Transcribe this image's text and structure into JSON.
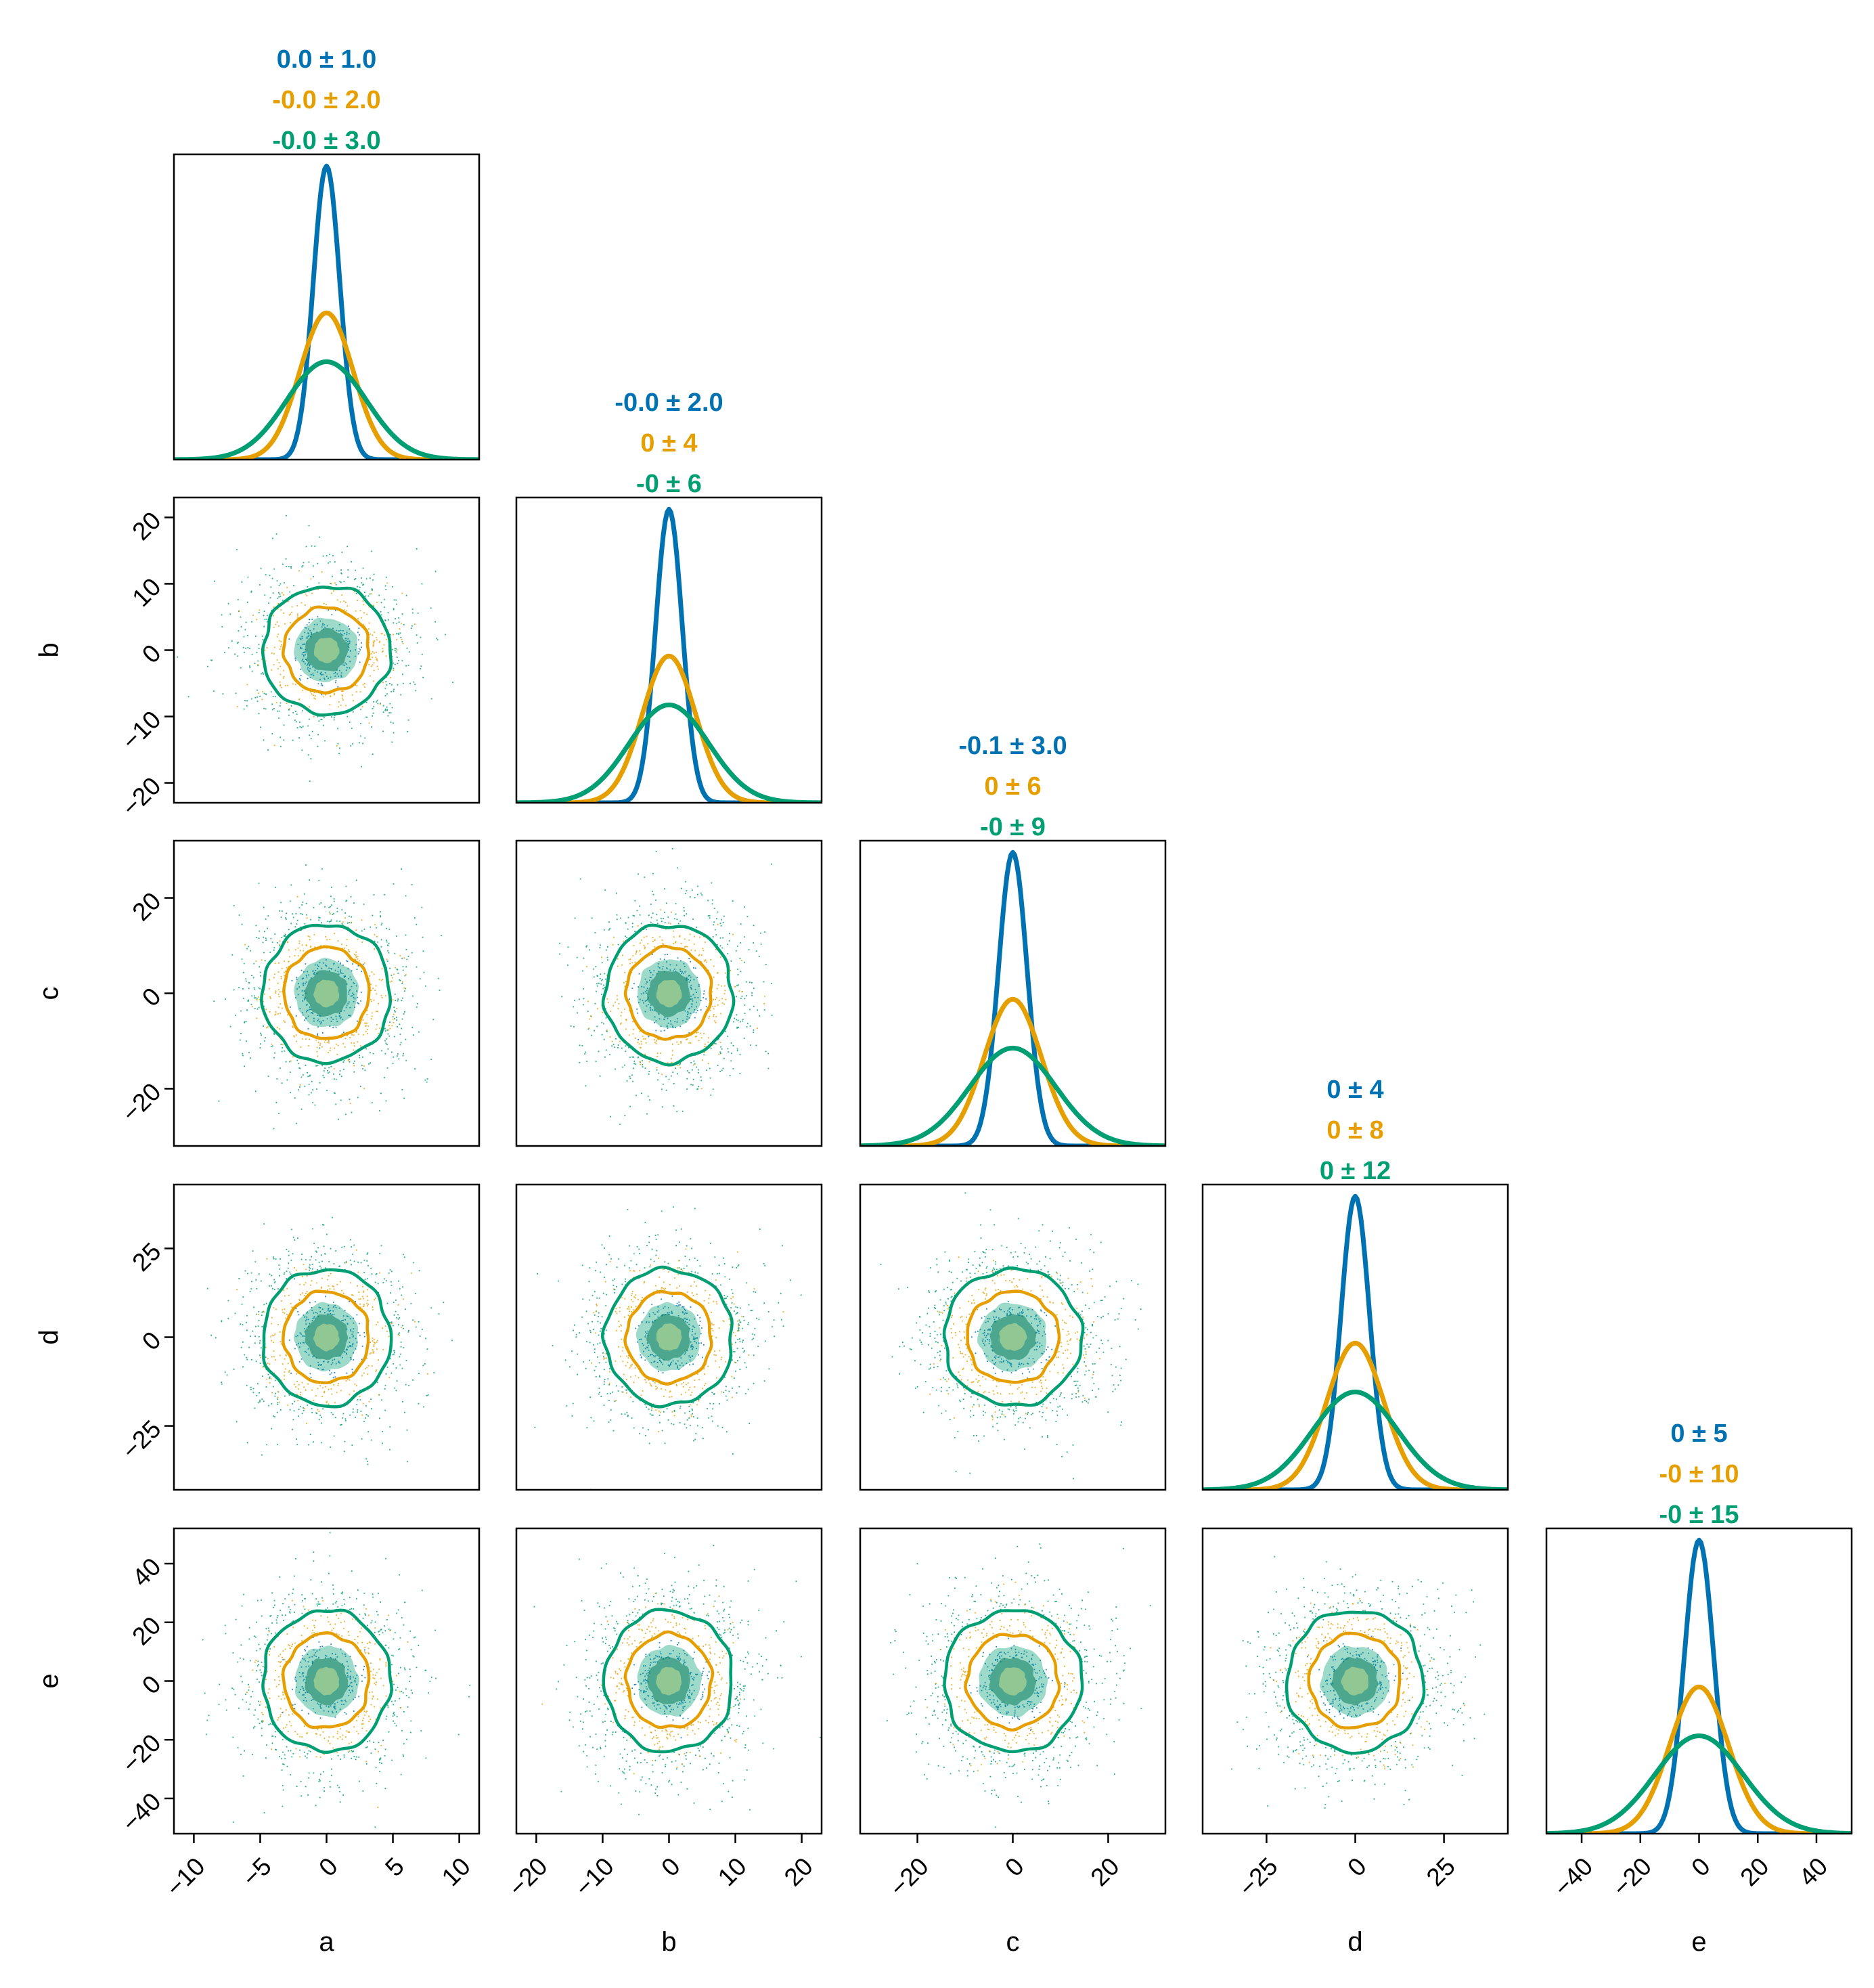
{
  "chart_data": {
    "type": "corner",
    "variables": [
      "a",
      "b",
      "c",
      "d",
      "e"
    ],
    "series": [
      {
        "name": "",
        "color": "#0072B2",
        "std": [
          1,
          2,
          3,
          4,
          5
        ]
      },
      {
        "name": "",
        "color": "#E69F00",
        "std": [
          2,
          4,
          6,
          8,
          10
        ]
      },
      {
        "name": "",
        "color": "#009E73",
        "std": [
          3,
          6,
          9,
          12,
          15
        ]
      }
    ],
    "diag_stats": [
      [
        "0.0 ± 1.0",
        "-0.0 ± 2.0",
        "-0.0 ± 3.0"
      ],
      [
        "-0.0 ± 2.0",
        "0 ± 4",
        "-0 ± 6"
      ],
      [
        "-0.1 ± 3.0",
        "0 ± 6",
        "-0 ± 9"
      ],
      [
        "0 ± 4",
        "0 ± 8",
        "0 ± 12"
      ],
      [
        "0 ± 5",
        "-0 ± 10",
        "-0 ± 15"
      ]
    ],
    "axis_ranges": [
      [
        -11.5,
        11.5
      ],
      [
        -23,
        23
      ],
      [
        -32,
        32
      ],
      [
        -43,
        43
      ],
      [
        -52,
        52
      ]
    ],
    "ticks": [
      [
        -10,
        -5,
        0,
        5,
        10
      ],
      [
        -20,
        -10,
        0,
        10,
        20
      ],
      [
        -20,
        0,
        20
      ],
      [
        -25,
        0,
        25
      ],
      [
        -40,
        -20,
        0,
        20,
        40
      ]
    ],
    "tick_labels": [
      [
        "−10",
        "−5",
        "0",
        "5",
        "10"
      ],
      [
        "−20",
        "−10",
        "0",
        "10",
        "20"
      ],
      [
        "−20",
        "0",
        "20"
      ],
      [
        "−25",
        "0",
        "25"
      ],
      [
        "−40",
        "−20",
        "0",
        "20",
        "40"
      ]
    ],
    "grid": false,
    "legend": "none"
  }
}
